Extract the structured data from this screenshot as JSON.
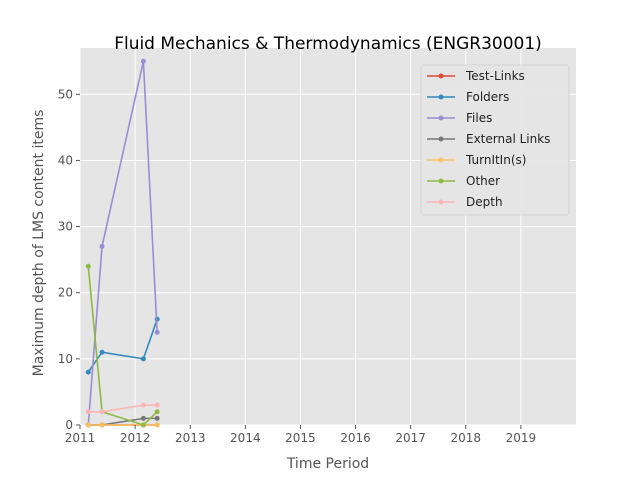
{
  "chart_data": {
    "type": "line",
    "title": "Fluid Mechanics & Thermodynamics (ENGR30001)",
    "xlabel": "Time Period",
    "ylabel": "Maximum depth of LMS content items",
    "xlim": [
      2011,
      2020
    ],
    "ylim": [
      0,
      57
    ],
    "x_ticks": [
      2011,
      2012,
      2013,
      2014,
      2015,
      2016,
      2017,
      2018,
      2019
    ],
    "y_ticks": [
      0,
      10,
      20,
      30,
      40,
      50
    ],
    "grid": true,
    "legend_position": "top-right",
    "series": [
      {
        "name": "Test-Links",
        "color": "#E24A33",
        "x": [
          2011.15,
          2011.4,
          2012.15,
          2012.4
        ],
        "y": [
          0,
          0,
          0,
          0
        ]
      },
      {
        "name": "Folders",
        "color": "#348ABD",
        "x": [
          2011.15,
          2011.4,
          2012.15,
          2012.4
        ],
        "y": [
          8,
          11,
          10,
          16
        ]
      },
      {
        "name": "Files",
        "color": "#988ED5",
        "x": [
          2011.15,
          2011.4,
          2012.15,
          2012.4
        ],
        "y": [
          0,
          27,
          55,
          14
        ]
      },
      {
        "name": "External Links",
        "color": "#777777",
        "x": [
          2011.15,
          2011.4,
          2012.15,
          2012.4
        ],
        "y": [
          0,
          0,
          1,
          1
        ]
      },
      {
        "name": "TurnItIn(s)",
        "color": "#FBC15E",
        "x": [
          2011.15,
          2011.4,
          2012.15,
          2012.4
        ],
        "y": [
          0,
          0,
          0,
          0
        ]
      },
      {
        "name": "Other",
        "color": "#8EBA42",
        "x": [
          2011.15,
          2011.4,
          2012.15,
          2012.4
        ],
        "y": [
          24,
          2,
          0,
          2
        ]
      },
      {
        "name": "Depth",
        "color": "#FFB5B8",
        "x": [
          2011.15,
          2011.4,
          2012.15,
          2012.4
        ],
        "y": [
          2,
          2,
          3,
          3
        ]
      }
    ]
  }
}
